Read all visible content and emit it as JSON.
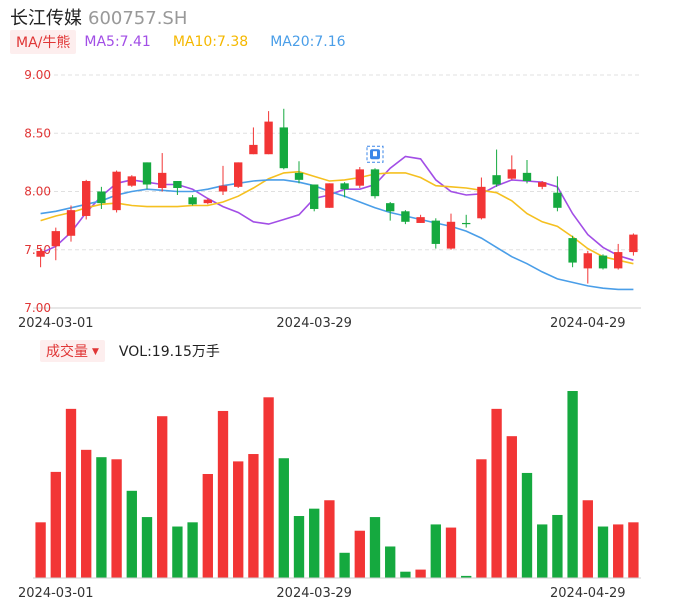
{
  "header": {
    "name": "长江传媒",
    "code": "600757.SH"
  },
  "ma_bar": {
    "toggle_label": "MA/牛熊",
    "ma5_label": "MA5:7.41",
    "ma10_label": "MA10:7.38",
    "ma20_label": "MA20:7.16"
  },
  "volume_bar": {
    "toggle_label": "成交量",
    "vol_label": "VOL:19.15万手"
  },
  "colors": {
    "up": "#f23535",
    "down": "#15a93f",
    "ma5": "#a24ee6",
    "ma10": "#f5c020",
    "ma20": "#4a9ee8",
    "grid": "#e0e0e0",
    "axis_label": "#e03636"
  },
  "chart_data": [
    {
      "type": "candlestick",
      "title": "",
      "y_ticks": [
        "9.00",
        "8.50",
        "8.00",
        "7.50",
        "7.00"
      ],
      "ylim": [
        7.0,
        9.0
      ],
      "x_tick_labels": [
        {
          "index": 1,
          "label": "2024-03-01"
        },
        {
          "index": 18,
          "label": "2024-03-29"
        },
        {
          "index": 36,
          "label": "2024-04-29"
        }
      ],
      "grid": true,
      "candles": [
        {
          "o": 7.44,
          "c": 7.49,
          "h": 7.52,
          "l": 7.35
        },
        {
          "o": 7.53,
          "c": 7.66,
          "h": 7.69,
          "l": 7.41
        },
        {
          "o": 7.62,
          "c": 7.84,
          "h": 7.88,
          "l": 7.57
        },
        {
          "o": 7.79,
          "c": 8.09,
          "h": 8.1,
          "l": 7.76
        },
        {
          "o": 8.0,
          "c": 7.9,
          "h": 8.04,
          "l": 7.85
        },
        {
          "o": 7.84,
          "c": 8.17,
          "h": 8.18,
          "l": 7.82
        },
        {
          "o": 8.05,
          "c": 8.13,
          "h": 8.14,
          "l": 8.04
        },
        {
          "o": 8.25,
          "c": 8.06,
          "h": 8.25,
          "l": 8.02
        },
        {
          "o": 8.03,
          "c": 8.16,
          "h": 8.33,
          "l": 8.0
        },
        {
          "o": 8.09,
          "c": 8.03,
          "h": 8.09,
          "l": 7.97
        },
        {
          "o": 7.95,
          "c": 7.89,
          "h": 7.97,
          "l": 7.88
        },
        {
          "o": 7.9,
          "c": 7.93,
          "h": 7.94,
          "l": 7.89
        },
        {
          "o": 8.0,
          "c": 8.05,
          "h": 8.22,
          "l": 7.97
        },
        {
          "o": 8.04,
          "c": 8.25,
          "h": 8.25,
          "l": 8.03
        },
        {
          "o": 8.32,
          "c": 8.4,
          "h": 8.55,
          "l": 8.32
        },
        {
          "o": 8.32,
          "c": 8.6,
          "h": 8.69,
          "l": 8.32
        },
        {
          "o": 8.55,
          "c": 8.2,
          "h": 8.71,
          "l": 8.19
        },
        {
          "o": 8.16,
          "c": 8.1,
          "h": 8.26,
          "l": 8.07
        },
        {
          "o": 8.06,
          "c": 7.85,
          "h": 8.06,
          "l": 7.83
        },
        {
          "o": 7.86,
          "c": 8.07,
          "h": 8.07,
          "l": 7.86
        },
        {
          "o": 8.07,
          "c": 8.02,
          "h": 8.08,
          "l": 7.95
        },
        {
          "o": 8.05,
          "c": 8.19,
          "h": 8.21,
          "l": 8.03
        },
        {
          "o": 8.19,
          "c": 7.96,
          "h": 8.2,
          "l": 7.94
        },
        {
          "o": 7.9,
          "c": 7.83,
          "h": 7.91,
          "l": 7.75
        },
        {
          "o": 7.83,
          "c": 7.74,
          "h": 7.84,
          "l": 7.72
        },
        {
          "o": 7.73,
          "c": 7.78,
          "h": 7.8,
          "l": 7.73
        },
        {
          "o": 7.75,
          "c": 7.55,
          "h": 7.77,
          "l": 7.51
        },
        {
          "o": 7.51,
          "c": 7.74,
          "h": 7.81,
          "l": 7.5
        },
        {
          "o": 7.73,
          "c": 7.72,
          "h": 7.8,
          "l": 7.69
        },
        {
          "o": 7.77,
          "c": 8.04,
          "h": 8.12,
          "l": 7.76
        },
        {
          "o": 8.14,
          "c": 8.06,
          "h": 8.36,
          "l": 8.04
        },
        {
          "o": 8.11,
          "c": 8.19,
          "h": 8.31,
          "l": 8.1
        },
        {
          "o": 8.16,
          "c": 8.09,
          "h": 8.27,
          "l": 8.07
        },
        {
          "o": 8.04,
          "c": 8.08,
          "h": 8.09,
          "l": 8.02
        },
        {
          "o": 7.99,
          "c": 7.86,
          "h": 8.13,
          "l": 7.83
        },
        {
          "o": 7.6,
          "c": 7.39,
          "h": 7.62,
          "l": 7.35
        },
        {
          "o": 7.34,
          "c": 7.47,
          "h": 7.49,
          "l": 7.21
        },
        {
          "o": 7.45,
          "c": 7.34,
          "h": 7.46,
          "l": 7.33
        },
        {
          "o": 7.34,
          "c": 7.48,
          "h": 7.55,
          "l": 7.33
        },
        {
          "o": 7.48,
          "c": 7.63,
          "h": 7.64,
          "l": 7.45
        }
      ],
      "series": [
        {
          "name": "MA5",
          "values": [
            7.47,
            7.53,
            7.65,
            7.82,
            7.96,
            8.07,
            8.1,
            8.08,
            8.06,
            8.06,
            8.02,
            7.94,
            7.87,
            7.82,
            7.74,
            7.72,
            7.76,
            7.8,
            7.94,
            7.97,
            8.02,
            8.02,
            8.06,
            8.2,
            8.3,
            8.28,
            8.1,
            8.0,
            7.97,
            7.98,
            8.05,
            8.1,
            8.09,
            8.08,
            8.04,
            7.81,
            7.63,
            7.52,
            7.45,
            7.41
          ]
        },
        {
          "name": "MA10",
          "values": [
            7.75,
            7.79,
            7.82,
            7.86,
            7.89,
            7.9,
            7.88,
            7.87,
            7.87,
            7.87,
            7.88,
            7.88,
            7.91,
            7.96,
            8.03,
            8.11,
            8.16,
            8.17,
            8.13,
            8.09,
            8.1,
            8.12,
            8.15,
            8.16,
            8.16,
            8.12,
            8.05,
            8.04,
            8.03,
            8.01,
            7.99,
            7.92,
            7.81,
            7.74,
            7.7,
            7.61,
            7.51,
            7.44,
            7.41,
            7.38
          ]
        },
        {
          "name": "MA20",
          "values": [
            7.81,
            7.83,
            7.86,
            7.89,
            7.92,
            7.97,
            8.0,
            8.02,
            8.01,
            8.0,
            8.0,
            8.02,
            8.05,
            8.07,
            8.09,
            8.1,
            8.1,
            8.08,
            8.05,
            8.0,
            7.96,
            7.91,
            7.86,
            7.82,
            7.79,
            7.76,
            7.73,
            7.7,
            7.66,
            7.6,
            7.52,
            7.44,
            7.38,
            7.31,
            7.25,
            7.22,
            7.19,
            7.17,
            7.16,
            7.16
          ]
        }
      ],
      "marker": {
        "index": 22,
        "value": 8.32
      }
    },
    {
      "type": "bar",
      "title": "",
      "x_tick_labels": [
        {
          "index": 1,
          "label": "2024-03-01"
        },
        {
          "index": 18,
          "label": "2024-03-29"
        },
        {
          "index": 36,
          "label": "2024-04-29"
        }
      ],
      "values": [
        5.3,
        10.1,
        16.1,
        12.2,
        11.5,
        11.3,
        8.3,
        5.8,
        15.4,
        4.9,
        5.3,
        9.9,
        15.9,
        11.1,
        11.8,
        17.2,
        11.4,
        5.9,
        6.6,
        7.4,
        2.4,
        4.5,
        5.8,
        3.0,
        0.6,
        0.8,
        5.1,
        4.8,
        0.2,
        11.3,
        16.1,
        13.5,
        10.0,
        5.1,
        6.0,
        17.8,
        7.4,
        4.9,
        5.1,
        5.3
      ],
      "directions": [
        "up",
        "up",
        "up",
        "up",
        "down",
        "up",
        "down",
        "down",
        "up",
        "down",
        "down",
        "up",
        "up",
        "up",
        "up",
        "up",
        "down",
        "down",
        "down",
        "up",
        "down",
        "up",
        "down",
        "down",
        "down",
        "up",
        "down",
        "up",
        "down",
        "up",
        "up",
        "up",
        "down",
        "down",
        "down",
        "down",
        "up",
        "down",
        "up",
        "up"
      ]
    }
  ]
}
